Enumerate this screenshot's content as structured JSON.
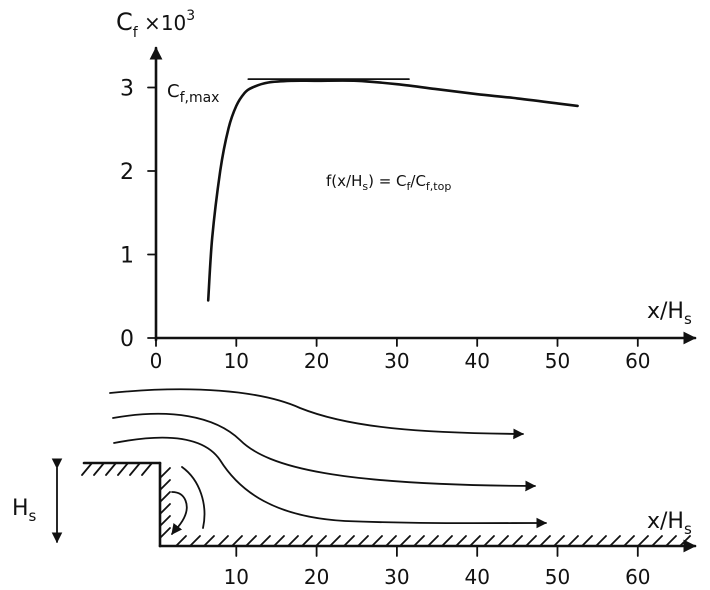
{
  "chart_data": [
    {
      "type": "line",
      "ylabel_main": "C",
      "ylabel_sub": "f",
      "ylabel_suffix": " ×10",
      "ylabel_sup": "3",
      "xlabel_main": "x/H",
      "xlabel_sub": "s",
      "xlim": [
        0,
        65
      ],
      "ylim": [
        0,
        3.5
      ],
      "xticks": [
        "0",
        "10",
        "20",
        "30",
        "40",
        "50",
        "60"
      ],
      "xtick_values": [
        0,
        10,
        20,
        30,
        40,
        50,
        60
      ],
      "yticks": [
        "0",
        "1",
        "2",
        "3"
      ],
      "ytick_values": [
        0,
        1,
        2,
        3
      ],
      "series": [
        {
          "x": [
            6.5,
            7,
            8,
            9,
            10,
            11,
            12,
            14,
            17,
            20,
            25,
            30,
            35,
            40,
            45,
            50,
            52.5
          ],
          "y": [
            0.45,
            1.2,
            2.0,
            2.5,
            2.78,
            2.93,
            3.0,
            3.06,
            3.08,
            3.08,
            3.08,
            3.04,
            2.98,
            2.92,
            2.87,
            2.81,
            2.78
          ]
        }
      ],
      "reference_line": {
        "y": 3.1,
        "x_from": 11.5,
        "x_to": 31.5
      },
      "annotations": {
        "cfmax_main": "C",
        "cfmax_sub": "f,max",
        "formula": "f(x/H",
        "formula_sub1": "s",
        "formula_mid": ") = C",
        "formula_sub2": "f",
        "formula_mid2": "/C",
        "formula_sub3": "f,top"
      }
    },
    {
      "type": "diagram",
      "xlabel_main": "x/H",
      "xlabel_sub": "s",
      "xticks": [
        "10",
        "20",
        "30",
        "40",
        "50",
        "60"
      ],
      "xtick_values": [
        10,
        20,
        30,
        40,
        50,
        60
      ],
      "height_label_main": "H",
      "height_label_sub": "s"
    }
  ]
}
